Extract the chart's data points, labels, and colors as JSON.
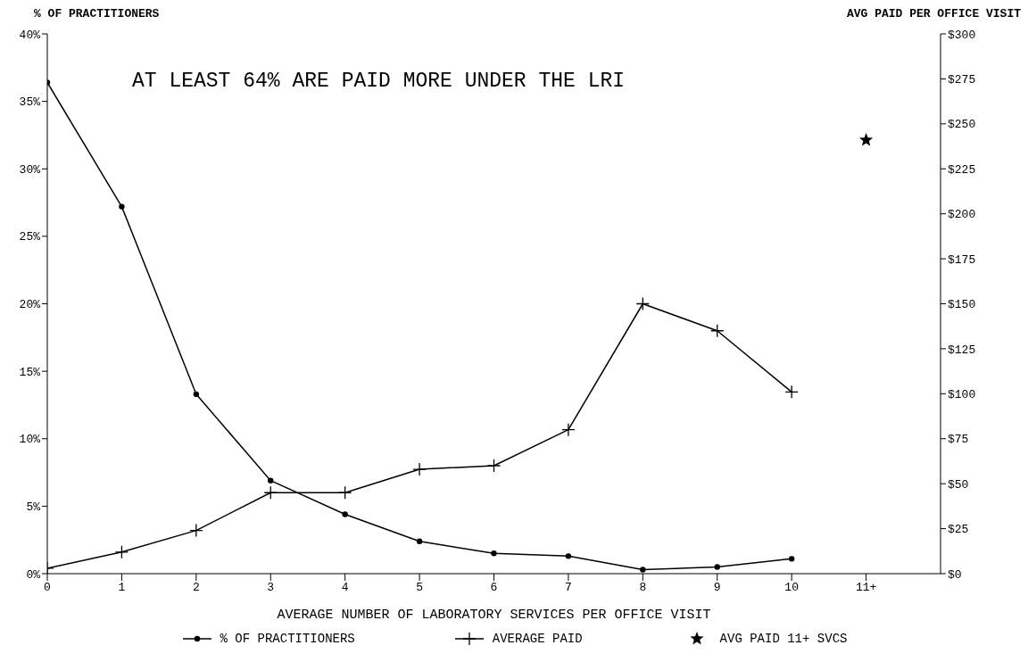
{
  "chart_data": {
    "type": "line",
    "xlabel": "AVERAGE NUMBER OF LABORATORY SERVICES PER OFFICE VISIT",
    "ylabel": "% OF PRACTITIONERS",
    "y2label": "AVG PAID PER OFFICE VISIT",
    "annotations": [
      "AT LEAST 64% ARE PAID MORE UNDER THE LRI"
    ],
    "categories": [
      "0",
      "1",
      "2",
      "3",
      "4",
      "5",
      "6",
      "7",
      "8",
      "9",
      "10",
      "11+"
    ],
    "series": [
      {
        "name": "% OF PRACTITIONERS",
        "color": "#000000",
        "marker": "circle",
        "values": [
          36.4,
          27.2,
          13.3,
          6.9,
          4.4,
          2.4,
          1.5,
          1.3,
          0.3,
          0.5,
          1.1,
          null
        ]
      },
      {
        "name": "AVERAGE PAID",
        "color": "#000000",
        "axis": "y2",
        "marker": "cross",
        "values": [
          3,
          12,
          24,
          45,
          45,
          58,
          60,
          80,
          150,
          135,
          101,
          null
        ]
      },
      {
        "name": "AVG PAID 11+ SVCS",
        "color": "#000000",
        "type": "scatter",
        "axis": "y2",
        "marker": "star",
        "values": [
          null,
          null,
          null,
          null,
          null,
          null,
          null,
          null,
          null,
          null,
          null,
          241
        ]
      }
    ],
    "ylim": [
      0,
      40
    ],
    "yticks": [
      {
        "value": 0,
        "label": "0%"
      },
      {
        "value": 5,
        "label": "5%"
      },
      {
        "value": 10,
        "label": "10%"
      },
      {
        "value": 15,
        "label": "15%"
      },
      {
        "value": 20,
        "label": "20%"
      },
      {
        "value": 25,
        "label": "25%"
      },
      {
        "value": 30,
        "label": "30%"
      },
      {
        "value": 35,
        "label": "35%"
      },
      {
        "value": 40,
        "label": "40%"
      }
    ],
    "y2lim": [
      0,
      300
    ],
    "y2ticks": [
      {
        "value": 0,
        "label": "$0"
      },
      {
        "value": 25,
        "label": "$25"
      },
      {
        "value": 50,
        "label": "$50"
      },
      {
        "value": 75,
        "label": "$75"
      },
      {
        "value": 100,
        "label": "$100"
      },
      {
        "value": 125,
        "label": "$125"
      },
      {
        "value": 150,
        "label": "$150"
      },
      {
        "value": 175,
        "label": "$175"
      },
      {
        "value": 200,
        "label": "$200"
      },
      {
        "value": 225,
        "label": "$225"
      },
      {
        "value": 250,
        "label": "$250"
      },
      {
        "value": 275,
        "label": "$275"
      },
      {
        "value": 300,
        "label": "$300"
      }
    ],
    "grid": false,
    "legend": "bottom",
    "line_style": "solid"
  }
}
